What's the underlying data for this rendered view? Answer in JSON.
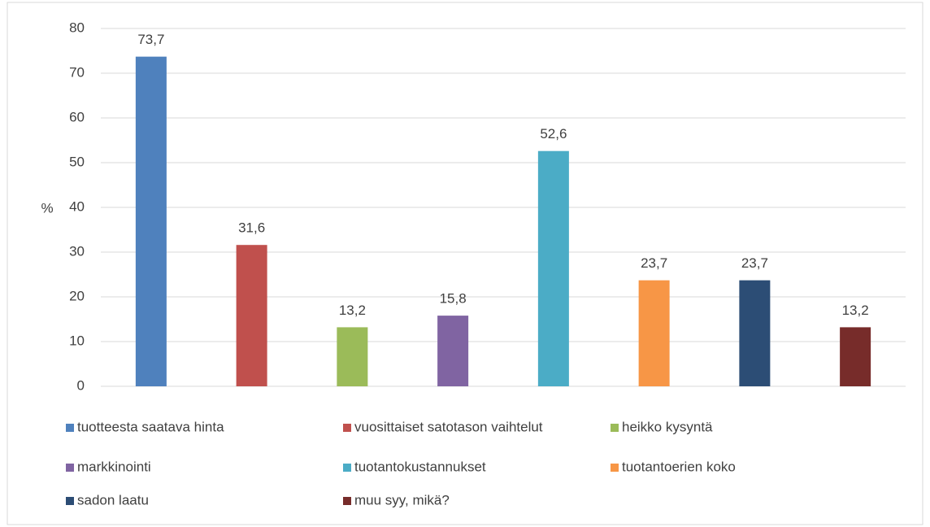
{
  "chart_data": {
    "type": "bar",
    "ylabel": "%",
    "series": [
      {
        "name": "tuotteesta saatava hinta",
        "color": "#4f81bd",
        "values": [
          73.7
        ],
        "value_labels": [
          "73,7"
        ]
      },
      {
        "name": "vuosittaiset satotason vaihtelut",
        "color": "#c0504d",
        "values": [
          31.6
        ],
        "value_labels": [
          "31,6"
        ]
      },
      {
        "name": "heikko kysyntä",
        "color": "#9bbb59",
        "values": [
          13.2
        ],
        "value_labels": [
          "13,2"
        ]
      },
      {
        "name": "markkinointi",
        "color": "#8064a2",
        "values": [
          15.8
        ],
        "value_labels": [
          "15,8"
        ]
      },
      {
        "name": "tuotantokustannukset",
        "color": "#4bacc6",
        "values": [
          52.6
        ],
        "value_labels": [
          "52,6"
        ]
      },
      {
        "name": "tuotantoerien koko",
        "color": "#f79646",
        "values": [
          23.7
        ],
        "value_labels": [
          "23,7"
        ]
      },
      {
        "name": "sadon laatu",
        "color": "#2c4d75",
        "values": [
          23.7
        ],
        "value_labels": [
          "23,7"
        ]
      },
      {
        "name": "muu syy, mikä?",
        "color": "#772c2a",
        "values": [
          13.2
        ],
        "value_labels": [
          "13,2"
        ]
      }
    ],
    "ylim": [
      0,
      80
    ],
    "yticks": [
      0,
      10,
      20,
      30,
      40,
      50,
      60,
      70,
      80
    ],
    "grid": true,
    "legend": "bottom"
  }
}
